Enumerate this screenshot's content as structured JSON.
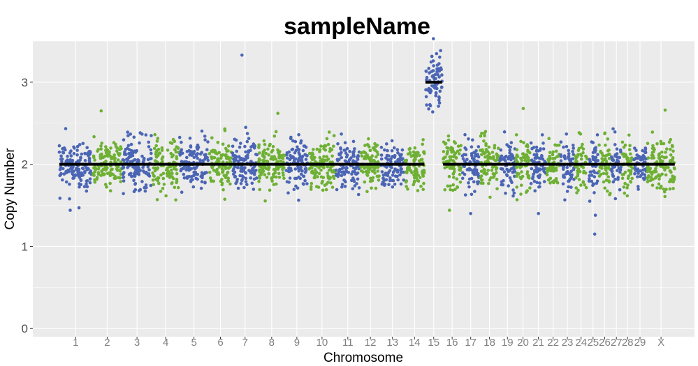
{
  "chart_data": {
    "type": "scatter",
    "title": "sampleName",
    "xlabel": "Chromosome",
    "ylabel": "Copy Number",
    "ylim": [
      -0.1,
      3.5
    ],
    "y_ticks": [
      0,
      1,
      2,
      3
    ],
    "grid": true,
    "legend": "none",
    "colors": {
      "panel": "#ebebeb",
      "grid": "#ffffff",
      "point_odd": "#4b65b5",
      "point_even": "#6eb033",
      "segment": "#000000"
    },
    "chromosomes": [
      {
        "label": "1",
        "start": 0,
        "end": 1.3,
        "segment": 2.0
      },
      {
        "label": "2",
        "start": 1.3,
        "end": 2.43,
        "segment": 2.0
      },
      {
        "label": "3",
        "start": 2.43,
        "end": 3.6,
        "segment": 2.0
      },
      {
        "label": "4",
        "start": 3.6,
        "end": 4.64,
        "segment": 2.0
      },
      {
        "label": "5",
        "start": 4.64,
        "end": 5.78,
        "segment": 2.0
      },
      {
        "label": "6",
        "start": 5.78,
        "end": 6.68,
        "segment": 2.0
      },
      {
        "label": "7",
        "start": 6.68,
        "end": 7.68,
        "segment": 2.0
      },
      {
        "label": "8",
        "start": 7.68,
        "end": 8.73,
        "segment": 2.0
      },
      {
        "label": "9",
        "start": 8.73,
        "end": 9.62,
        "segment": 2.0
      },
      {
        "label": "10",
        "start": 9.62,
        "end": 10.67,
        "segment": 2.0
      },
      {
        "label": "11",
        "start": 10.67,
        "end": 11.61,
        "segment": 2.0
      },
      {
        "label": "12",
        "start": 11.61,
        "end": 12.41,
        "segment": 2.0
      },
      {
        "label": "13",
        "start": 12.41,
        "end": 13.31,
        "segment": 2.0
      },
      {
        "label": "14",
        "start": 13.31,
        "end": 14.11,
        "segment": 2.0
      },
      {
        "label": "15",
        "start": 14.11,
        "end": 14.79,
        "segment": 3.0
      },
      {
        "label": "16",
        "start": 14.79,
        "end": 15.53,
        "segment": 2.0
      },
      {
        "label": "17",
        "start": 15.53,
        "end": 16.22,
        "segment": 2.0
      },
      {
        "label": "18",
        "start": 16.22,
        "end": 16.98,
        "segment": 2.0
      },
      {
        "label": "19",
        "start": 16.98,
        "end": 17.6,
        "segment": 2.0
      },
      {
        "label": "20",
        "start": 17.6,
        "end": 18.18,
        "segment": 2.0
      },
      {
        "label": "21",
        "start": 18.18,
        "end": 18.78,
        "segment": 2.0
      },
      {
        "label": "22",
        "start": 18.78,
        "end": 19.32,
        "segment": 2.0
      },
      {
        "label": "23",
        "start": 19.32,
        "end": 19.88,
        "segment": 2.0
      },
      {
        "label": "24",
        "start": 19.88,
        "end": 20.38,
        "segment": 2.0
      },
      {
        "label": "25",
        "start": 20.38,
        "end": 20.8,
        "segment": 2.0
      },
      {
        "label": "26",
        "start": 20.8,
        "end": 21.28,
        "segment": 2.0
      },
      {
        "label": "27",
        "start": 21.28,
        "end": 21.7,
        "segment": 2.0
      },
      {
        "label": "28",
        "start": 21.7,
        "end": 22.14,
        "segment": 2.0
      },
      {
        "label": "29",
        "start": 22.14,
        "end": 22.66,
        "segment": 2.0
      },
      {
        "label": "X",
        "start": 22.66,
        "end": 23.76,
        "segment": 2.0
      }
    ],
    "outliers": [
      {
        "chromosome": "1",
        "y": 1.44
      },
      {
        "chromosome": "1",
        "y": 1.47
      },
      {
        "chromosome": "2",
        "y": 2.65
      },
      {
        "chromosome": "7",
        "y": 3.33
      },
      {
        "chromosome": "8",
        "y": 2.62
      },
      {
        "chromosome": "15",
        "y": 3.53
      },
      {
        "chromosome": "16",
        "y": 1.44
      },
      {
        "chromosome": "17",
        "y": 1.4
      },
      {
        "chromosome": "20",
        "y": 2.68
      },
      {
        "chromosome": "21",
        "y": 1.4
      },
      {
        "chromosome": "25",
        "y": 1.38
      },
      {
        "chromosome": "25",
        "y": 1.15
      },
      {
        "chromosome": "X",
        "y": 2.66
      }
    ]
  }
}
